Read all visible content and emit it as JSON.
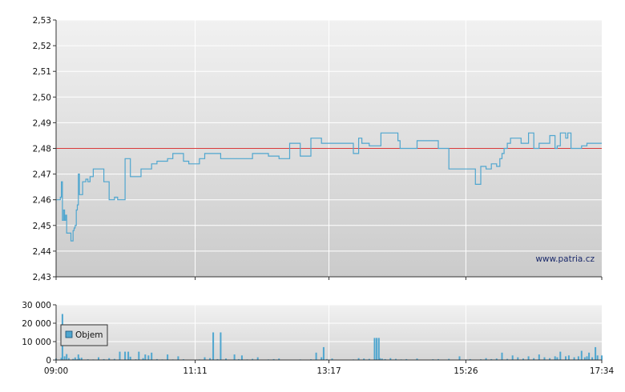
{
  "watermark": "www.patria.cz",
  "legend": {
    "label": "Objem"
  },
  "colors": {
    "price_line": "#4fa6cf",
    "reference_line": "#d93a3a",
    "volume_bar": "#4fa6cf",
    "grid": "#ffffff",
    "plot_bg_top": "#f1f1f1",
    "plot_bg_bottom": "#cbcbcb",
    "axis": "#333333"
  },
  "chart_data": [
    {
      "type": "line",
      "name": "price",
      "ylim": [
        2.43,
        2.53
      ],
      "xlim": [
        "09:00",
        "17:34"
      ],
      "y_ticks": [
        "2,43",
        "2,44",
        "2,45",
        "2,46",
        "2,47",
        "2,48",
        "2,49",
        "2,50",
        "2,51",
        "2,52",
        "2,53"
      ],
      "x_ticks": [
        "09:00",
        "11:11",
        "13:17",
        "15:26",
        "17:34"
      ],
      "grid": true,
      "reference_line": 2.48,
      "x": [
        "09:00",
        "09:03",
        "09:04",
        "09:05",
        "09:06",
        "09:07",
        "09:08",
        "09:09",
        "09:10",
        "09:11",
        "09:13",
        "09:14",
        "09:16",
        "09:17",
        "09:18",
        "09:19",
        "09:20",
        "09:21",
        "09:22",
        "09:25",
        "09:27",
        "09:28",
        "09:30",
        "09:32",
        "09:35",
        "09:37",
        "09:40",
        "09:45",
        "09:50",
        "09:55",
        "09:58",
        "10:00",
        "10:05",
        "10:10",
        "10:15",
        "10:20",
        "10:25",
        "10:30",
        "10:35",
        "10:40",
        "10:45",
        "10:48",
        "10:50",
        "10:52",
        "10:54",
        "10:56",
        "11:00",
        "11:05",
        "11:10",
        "11:12",
        "11:15",
        "11:20",
        "11:25",
        "11:28",
        "11:35",
        "11:45",
        "11:50",
        "11:55",
        "12:05",
        "12:10",
        "12:20",
        "12:30",
        "12:40",
        "12:50",
        "13:00",
        "13:10",
        "13:20",
        "13:30",
        "13:40",
        "13:45",
        "13:48",
        "13:52",
        "13:55",
        "14:05",
        "14:06",
        "14:10",
        "14:15",
        "14:22",
        "14:24",
        "14:30",
        "14:40",
        "14:50",
        "15:00",
        "15:10",
        "15:20",
        "15:25",
        "15:35",
        "15:40",
        "15:45",
        "15:50",
        "15:55",
        "15:58",
        "16:00",
        "16:02",
        "16:05",
        "16:08",
        "16:12",
        "16:15",
        "16:18",
        "16:22",
        "16:25",
        "16:30",
        "16:35",
        "16:45",
        "16:50",
        "16:52",
        "16:55",
        "17:00",
        "17:02",
        "17:05",
        "17:10",
        "17:15",
        "17:20",
        "17:25",
        "17:28",
        "17:30",
        "17:34"
      ],
      "y": [
        2.46,
        2.46,
        2.461,
        2.467,
        2.452,
        2.456,
        2.452,
        2.454,
        2.447,
        2.447,
        2.447,
        2.444,
        2.448,
        2.449,
        2.45,
        2.456,
        2.458,
        2.47,
        2.462,
        2.467,
        2.467,
        2.468,
        2.467,
        2.469,
        2.472,
        2.472,
        2.472,
        2.467,
        2.46,
        2.461,
        2.46,
        2.46,
        2.476,
        2.469,
        2.469,
        2.472,
        2.472,
        2.474,
        2.475,
        2.475,
        2.476,
        2.476,
        2.478,
        2.478,
        2.478,
        2.478,
        2.475,
        2.474,
        2.474,
        2.474,
        2.476,
        2.478,
        2.478,
        2.478,
        2.476,
        2.476,
        2.476,
        2.476,
        2.478,
        2.478,
        2.477,
        2.476,
        2.482,
        2.477,
        2.484,
        2.482,
        2.482,
        2.482,
        2.478,
        2.484,
        2.482,
        2.482,
        2.481,
        2.481,
        2.486,
        2.486,
        2.486,
        2.483,
        2.48,
        2.48,
        2.483,
        2.483,
        2.48,
        2.472,
        2.472,
        2.472,
        2.466,
        2.473,
        2.472,
        2.474,
        2.473,
        2.476,
        2.478,
        2.48,
        2.482,
        2.484,
        2.484,
        2.484,
        2.482,
        2.482,
        2.486,
        2.48,
        2.482,
        2.485,
        2.48,
        2.481,
        2.486,
        2.484,
        2.486,
        2.48,
        2.48,
        2.481,
        2.482,
        2.482,
        2.482,
        2.482,
        2.482
      ]
    },
    {
      "type": "bar",
      "name": "Objem",
      "ylim": [
        0,
        30000
      ],
      "y_ticks": [
        "0",
        "10 000",
        "20 000",
        "30 000"
      ],
      "x_ticks": [
        "09:00",
        "11:11",
        "13:17",
        "15:26",
        "17:34"
      ],
      "grid": true,
      "legend": "top-left",
      "x": [
        "09:00",
        "09:05",
        "09:06",
        "09:08",
        "09:10",
        "09:12",
        "09:16",
        "09:18",
        "09:20",
        "09:21",
        "09:22",
        "09:24",
        "09:30",
        "09:35",
        "09:40",
        "09:45",
        "09:50",
        "09:55",
        "10:00",
        "10:05",
        "10:08",
        "10:10",
        "10:15",
        "10:18",
        "10:22",
        "10:24",
        "10:27",
        "10:30",
        "10:35",
        "10:40",
        "10:45",
        "10:50",
        "10:55",
        "11:00",
        "11:10",
        "11:15",
        "11:20",
        "11:25",
        "11:28",
        "11:32",
        "11:35",
        "11:40",
        "11:48",
        "11:52",
        "11:55",
        "12:00",
        "12:05",
        "12:10",
        "12:20",
        "12:25",
        "12:30",
        "12:40",
        "12:50",
        "13:00",
        "13:05",
        "13:10",
        "13:12",
        "13:15",
        "13:20",
        "13:30",
        "13:40",
        "13:45",
        "13:50",
        "13:55",
        "14:00",
        "14:02",
        "14:04",
        "14:05",
        "14:07",
        "14:10",
        "14:15",
        "14:20",
        "14:25",
        "14:30",
        "14:40",
        "14:50",
        "14:55",
        "15:00",
        "15:10",
        "15:20",
        "15:26",
        "15:30",
        "15:40",
        "15:45",
        "15:50",
        "15:55",
        "16:00",
        "16:05",
        "16:10",
        "16:15",
        "16:20",
        "16:25",
        "16:30",
        "16:35",
        "16:40",
        "16:45",
        "16:50",
        "16:52",
        "16:55",
        "17:00",
        "17:03",
        "17:08",
        "17:12",
        "17:15",
        "17:18",
        "17:20",
        "17:22",
        "17:25",
        "17:28",
        "17:30",
        "17:34"
      ],
      "y": [
        800,
        1200,
        25000,
        2000,
        3200,
        1000,
        600,
        1400,
        400,
        3000,
        1000,
        1200,
        400,
        300,
        1500,
        500,
        1000,
        600,
        4500,
        4500,
        4500,
        1800,
        400,
        4500,
        1000,
        3000,
        2500,
        4000,
        500,
        300,
        3000,
        300,
        2000,
        400,
        200,
        300,
        1500,
        1000,
        15000,
        500,
        15000,
        800,
        3000,
        500,
        2500,
        300,
        600,
        1500,
        300,
        500,
        800,
        200,
        300,
        400,
        4000,
        1500,
        7000,
        500,
        800,
        200,
        300,
        1000,
        800,
        600,
        12000,
        12000,
        12000,
        1000,
        800,
        500,
        1000,
        600,
        300,
        500,
        800,
        200,
        400,
        500,
        600,
        2000,
        300,
        500,
        400,
        1000,
        500,
        800,
        4000,
        600,
        2500,
        1500,
        800,
        2000,
        1000,
        3000,
        1500,
        1000,
        2000,
        1500,
        4500,
        2000,
        2500,
        1500,
        2000,
        5000,
        1500,
        2000,
        4000,
        1500,
        7000,
        2500,
        2500
      ]
    }
  ]
}
